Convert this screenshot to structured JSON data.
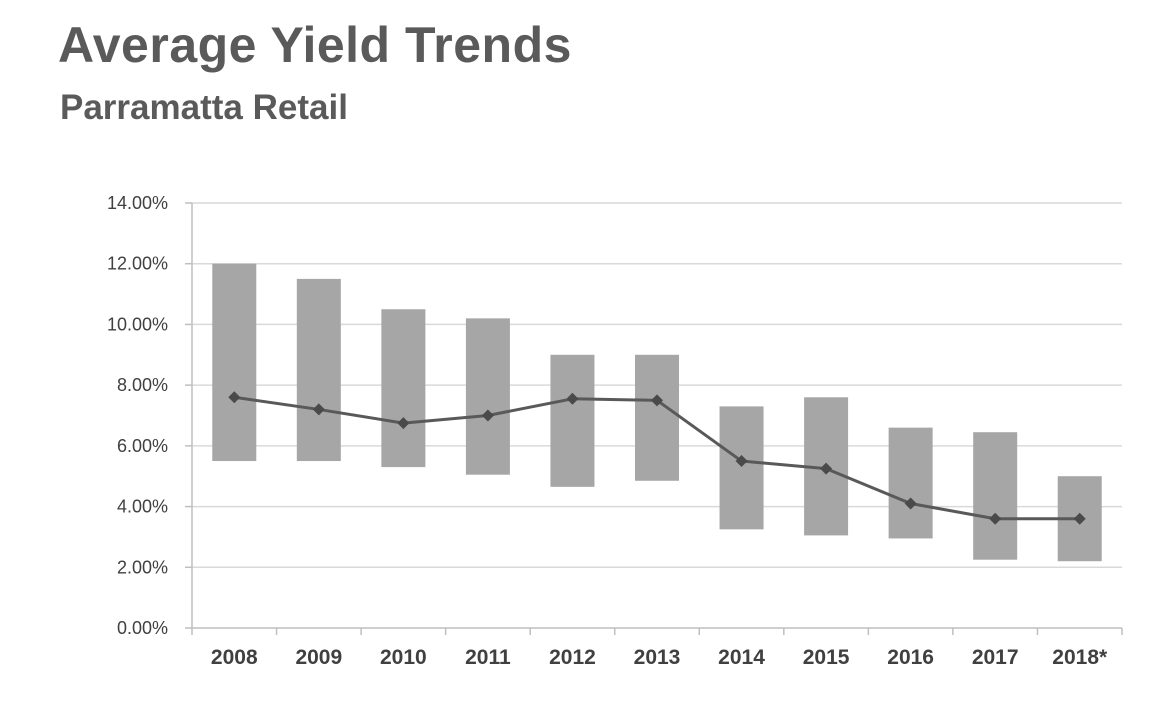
{
  "title": "Average Yield Trends",
  "subtitle": "Parramatta Retail",
  "colors": {
    "bar": "#a6a6a6",
    "line": "#595959",
    "grid": "#d9d9d9",
    "axis": "#bfbfbf"
  },
  "chart_data": {
    "type": "bar",
    "title": "Average Yield Trends",
    "subtitle": "Parramatta Retail",
    "xlabel": "",
    "ylabel": "",
    "ylim": [
      0,
      14
    ],
    "yticks": [
      0,
      2,
      4,
      6,
      8,
      10,
      12,
      14
    ],
    "ytick_labels": [
      "0.00%",
      "2.00%",
      "4.00%",
      "6.00%",
      "8.00%",
      "10.00%",
      "12.00%",
      "14.00%"
    ],
    "grid": true,
    "legend": "none",
    "categories": [
      "2008",
      "2009",
      "2010",
      "2011",
      "2012",
      "2013",
      "2014",
      "2015",
      "2016",
      "2017",
      "2018*"
    ],
    "series": [
      {
        "type": "range-bar",
        "low": [
          5.5,
          5.5,
          5.3,
          5.05,
          4.65,
          4.85,
          3.25,
          3.05,
          2.95,
          2.25,
          2.2
        ],
        "high": [
          12.0,
          11.5,
          10.5,
          10.2,
          9.0,
          9.0,
          7.3,
          7.6,
          6.6,
          6.45,
          5.0
        ]
      },
      {
        "type": "line",
        "values": [
          7.6,
          7.2,
          6.75,
          7.0,
          7.55,
          7.5,
          5.5,
          5.25,
          4.1,
          3.6,
          3.6
        ]
      }
    ]
  }
}
